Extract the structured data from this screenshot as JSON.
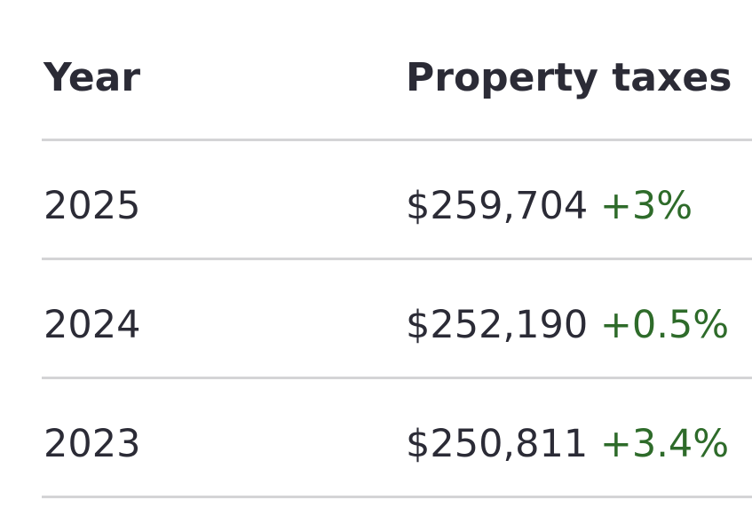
{
  "table": {
    "header": [
      "Year",
      "Property taxes"
    ],
    "rows": [
      [
        "2025",
        "$259,704",
        "+3%"
      ],
      [
        "2024",
        "$252,190",
        "+0.5%"
      ],
      [
        "2023",
        "$250,811",
        "+3.4%"
      ]
    ]
  }
}
